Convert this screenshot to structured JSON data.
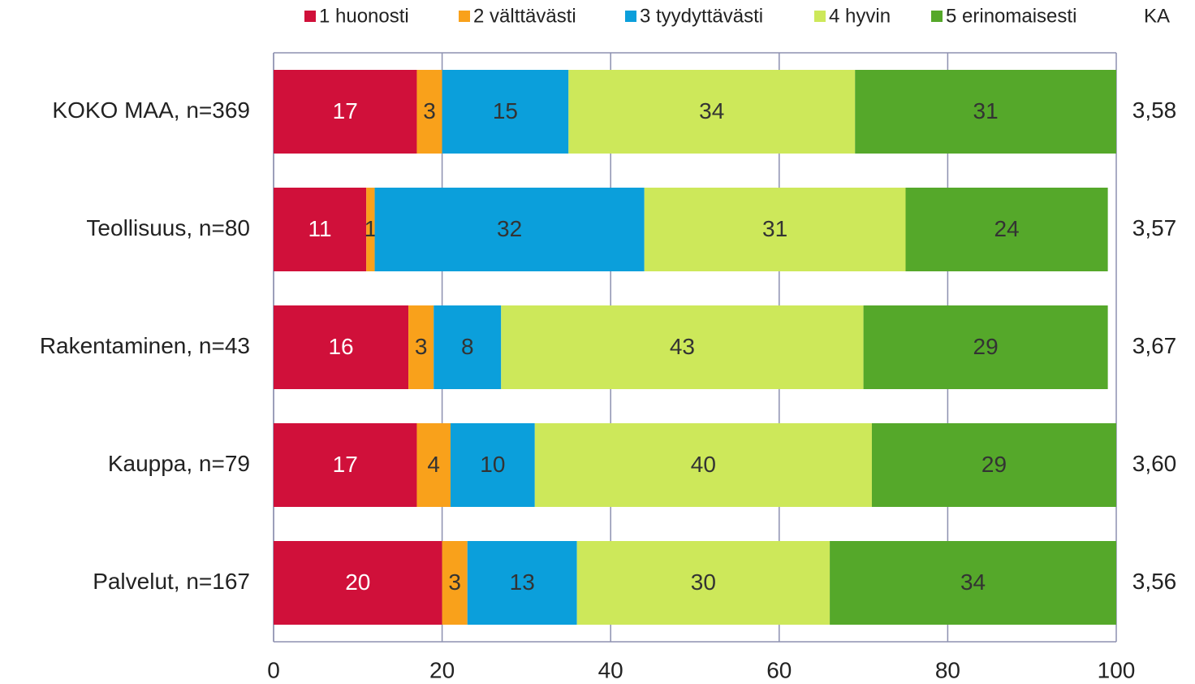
{
  "chart_data": {
    "type": "stacked_bar_horizontal",
    "categories": [
      "KOKO MAA, n=369",
      "Teollisuus, n=80",
      "Rakentaminen, n=43",
      "Kauppa, n=79",
      "Palvelut, n=167"
    ],
    "series": [
      {
        "name": "1 huonosti",
        "color": "#d0103a",
        "values": [
          17,
          11,
          16,
          17,
          20
        ]
      },
      {
        "name": "2 välttävästi",
        "color": "#f9a11b",
        "values": [
          3,
          1,
          3,
          4,
          3
        ]
      },
      {
        "name": "3 tyydyttävästi",
        "color": "#0b9fdb",
        "values": [
          15,
          32,
          8,
          10,
          13
        ]
      },
      {
        "name": "4 hyvin",
        "color": "#cde85a",
        "values": [
          34,
          31,
          43,
          40,
          30
        ]
      },
      {
        "name": "5 erinomaisesti",
        "color": "#55a82a",
        "values": [
          31,
          24,
          29,
          29,
          34
        ]
      }
    ],
    "ka": {
      "title": "KA",
      "values": [
        3.58,
        3.57,
        3.67,
        3.6,
        3.56
      ],
      "value_labels": [
        "3,58",
        "3,57",
        "3,67",
        "3,60",
        "3,56"
      ]
    },
    "xlim": [
      0,
      100
    ],
    "xticks": [
      0,
      20,
      40,
      60,
      80,
      100
    ],
    "grid": true,
    "legend": "top"
  }
}
